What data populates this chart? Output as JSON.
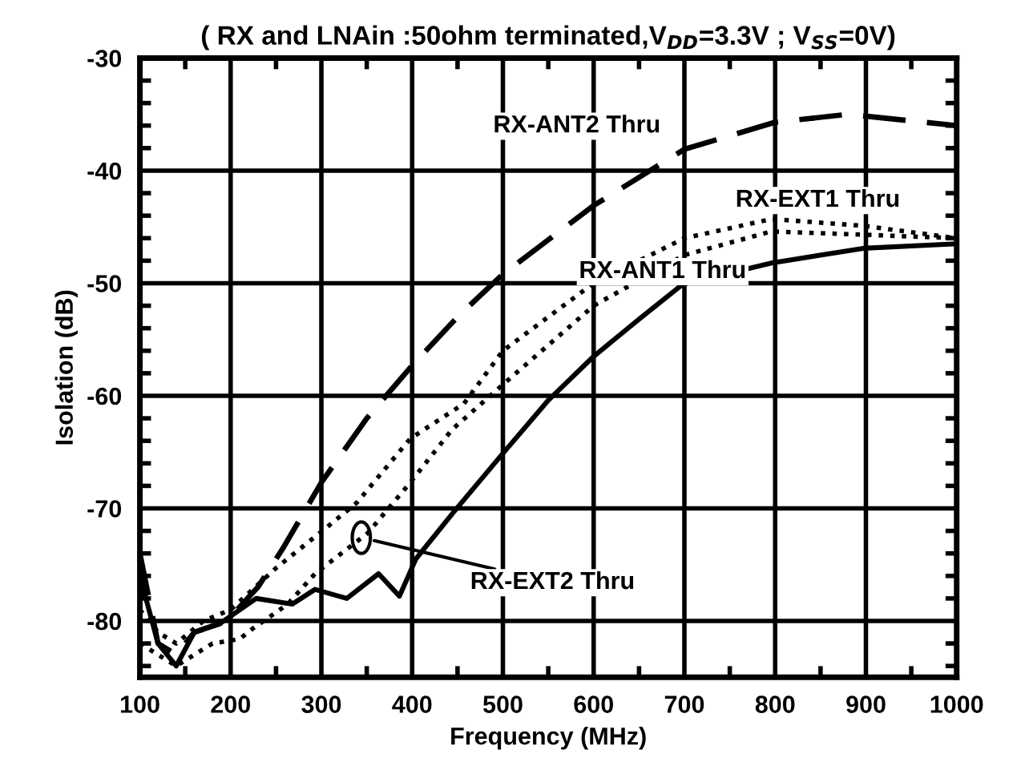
{
  "chart_data": {
    "type": "line",
    "title": "( RX and LNAin :50ohm terminated,V$_{DD}$=3.3V ; V$_{SS}$=0V)",
    "xlabel": "Frequency (MHz)",
    "ylabel": "Isolation (dB)",
    "xlim": [
      100,
      1000
    ],
    "ylim": [
      -85,
      -30
    ],
    "xticks": [
      100,
      {
        "value": 150,
        "label": null
      },
      200,
      {
        "value": 250,
        "label": null
      },
      300,
      {
        "value": 350,
        "label": null
      },
      400,
      {
        "value": 450,
        "label": null
      },
      500,
      {
        "value": 550,
        "label": null
      },
      600,
      {
        "value": 650,
        "label": null
      },
      700,
      {
        "value": 750,
        "label": null
      },
      800,
      {
        "value": 850,
        "label": null
      },
      900,
      {
        "value": 950,
        "label": null
      },
      1000
    ],
    "yticks": [
      {
        "value": -84,
        "label": null
      },
      {
        "value": -82,
        "label": null
      },
      -80,
      {
        "value": -78,
        "label": null
      },
      {
        "value": -76,
        "label": null
      },
      {
        "value": -74,
        "label": null
      },
      {
        "value": -72,
        "label": null
      },
      -70,
      {
        "value": -68,
        "label": null
      },
      {
        "value": -66,
        "label": null
      },
      {
        "value": -64,
        "label": null
      },
      {
        "value": -62,
        "label": null
      },
      -60,
      {
        "value": -58,
        "label": null
      },
      {
        "value": -56,
        "label": null
      },
      {
        "value": -54,
        "label": null
      },
      {
        "value": -52,
        "label": null
      },
      -50,
      {
        "value": -48,
        "label": null
      },
      {
        "value": -46,
        "label": null
      },
      {
        "value": -44,
        "label": null
      },
      {
        "value": -42,
        "label": null
      },
      -40,
      {
        "value": -38,
        "label": null
      },
      {
        "value": -36,
        "label": null
      },
      {
        "value": -34,
        "label": null
      },
      {
        "value": -32,
        "label": null
      },
      -30
    ],
    "grid": true,
    "legend": false,
    "series": [
      {
        "color": "#000000",
        "line_style": "dashed",
        "x": [
          100,
          110,
          120,
          140,
          160,
          196,
          230,
          258,
          300,
          350,
          400,
          450,
          500,
          600,
          700,
          800,
          880,
          1000
        ],
        "values": [
          -74,
          -78,
          -82,
          -83,
          -81,
          -80,
          -77,
          -73.5,
          -67.7,
          -62,
          -57.3,
          -53,
          -49.2,
          -43.1,
          -38.1,
          -35.7,
          -35,
          -36
        ]
      },
      {
        "color": "#000000",
        "line_style": "dotted",
        "x": [
          100,
          120,
          140,
          170,
          200,
          250,
          298,
          339,
          398,
          457,
          500,
          600,
          700,
          796,
          897,
          1000
        ],
        "values": [
          -79,
          -81,
          -82,
          -80,
          -79,
          -75.3,
          -72.2,
          -69.5,
          -63.8,
          -60.7,
          -56,
          -50,
          -46,
          -44.3,
          -44.9,
          -46
        ]
      },
      {
        "color": "#000000",
        "line_style": "dotted",
        "x": [
          100,
          120,
          140,
          180,
          210,
          224,
          263,
          293,
          351,
          398,
          444,
          500,
          600,
          700,
          796,
          900,
          1000
        ],
        "values": [
          -82,
          -83,
          -84,
          -82,
          -81.6,
          -80.7,
          -78.5,
          -75.8,
          -72.2,
          -67.7,
          -63,
          -59,
          -52,
          -47.5,
          -45.4,
          -45.7,
          -46
        ]
      },
      {
        "color": "#000000",
        "line_style": "solid",
        "x": [
          100,
          110,
          120,
          140,
          160,
          187,
          228,
          268,
          293,
          328,
          363,
          386,
          404,
          445,
          497,
          550,
          600,
          650,
          698,
          796,
          897,
          1000
        ],
        "values": [
          -76,
          -79,
          -82,
          -84,
          -81,
          -80.3,
          -78,
          -78.5,
          -77.2,
          -78,
          -75.8,
          -77.8,
          -74.5,
          -70.4,
          -65.4,
          -60.4,
          -56.5,
          -53.2,
          -50.1,
          -48.2,
          -46.9,
          -46.5
        ]
      }
    ],
    "annotations": [
      "RX-ANT2 Thru",
      "RX-EXT1 Thru",
      "RX-ANT1 Thru",
      {
        "text": "RX-EXT2 Thru",
        "x": 344,
        "y": -72.6
      }
    ]
  }
}
